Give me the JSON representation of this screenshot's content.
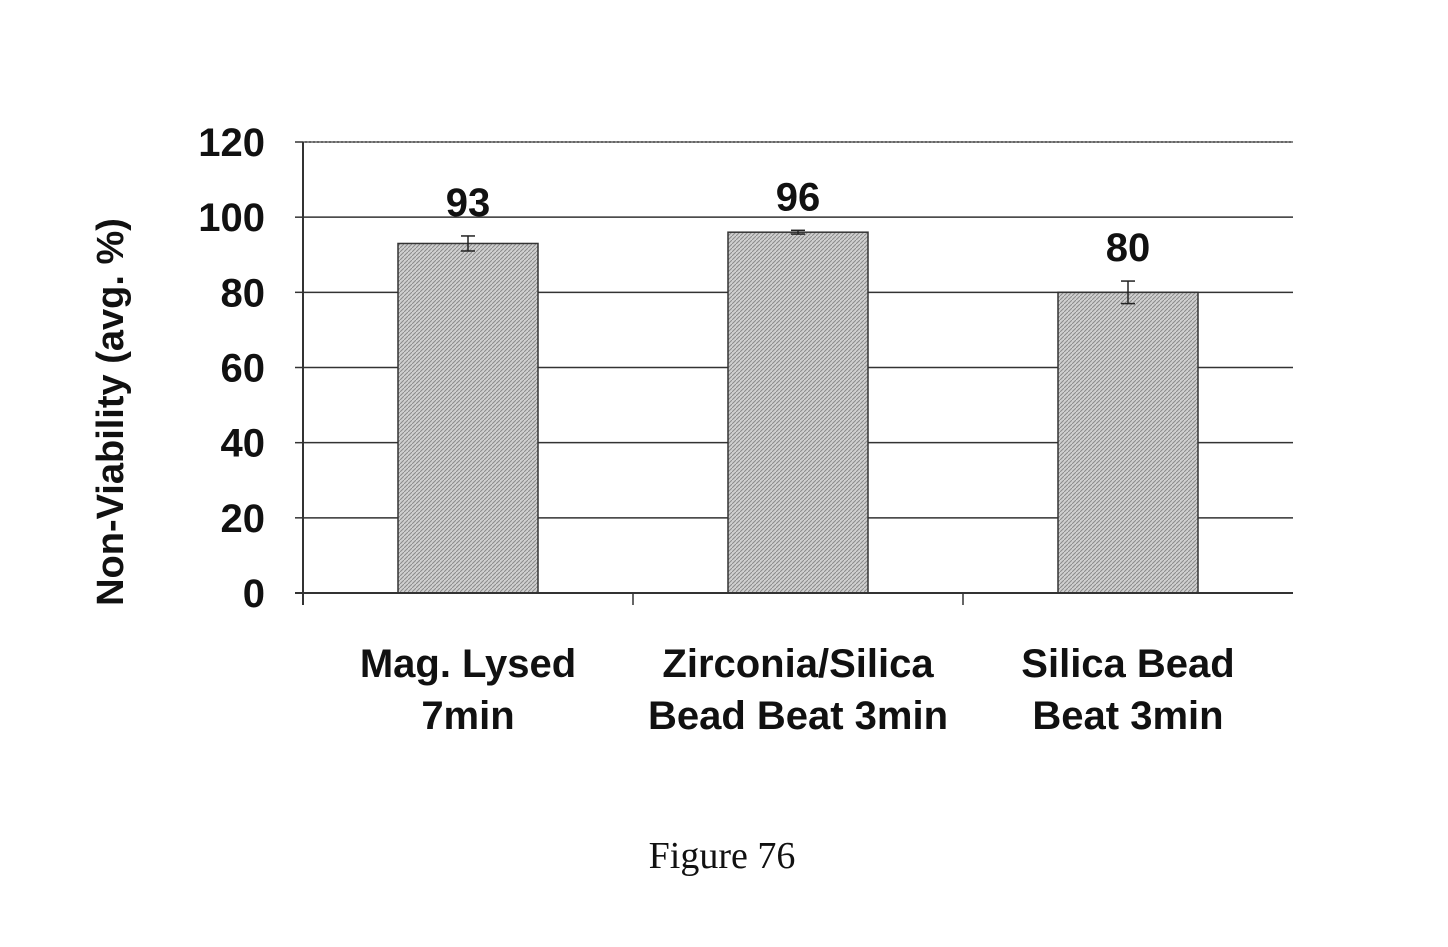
{
  "chart_data": {
    "type": "bar",
    "categories": [
      [
        "Mag. Lysed",
        "7min"
      ],
      [
        "Zirconia/Silica",
        "Bead Beat 3min"
      ],
      [
        "Silica Bead",
        "Beat 3min"
      ]
    ],
    "values": [
      93,
      96,
      80
    ],
    "value_labels": [
      "93",
      "96",
      "80"
    ],
    "error_bars": [
      2,
      0.5,
      3
    ],
    "ylabel": "Non-Viability (avg. %)",
    "xlabel": "",
    "ylim": [
      0,
      120
    ],
    "yticks": [
      0,
      20,
      40,
      60,
      80,
      100,
      120
    ],
    "grid": true,
    "bar_fill": "#c8c8c8",
    "bar_stroke": "#333333",
    "grid_color": "#333333"
  },
  "caption": "Figure 76"
}
